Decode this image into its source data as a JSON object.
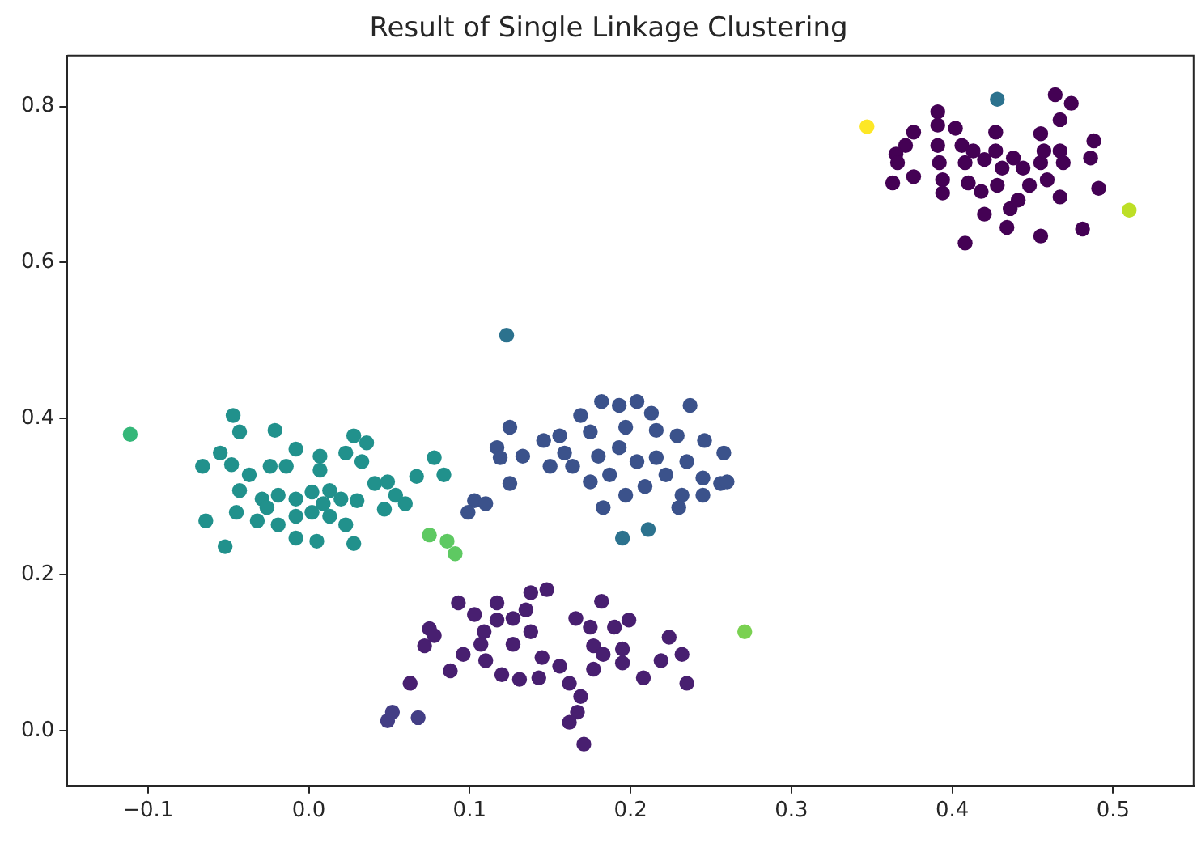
{
  "chart_data": {
    "type": "scatter",
    "title": "Result of Single Linkage Clustering",
    "marker": "circle",
    "grid": false,
    "legend": false,
    "xlim": [
      -0.15,
      0.55
    ],
    "ylim": [
      -0.07,
      0.865
    ],
    "xticks": [
      {
        "value": -0.1,
        "label": "−0.1"
      },
      {
        "value": 0,
        "label": "0.0"
      },
      {
        "value": 0.1,
        "label": "0.1"
      },
      {
        "value": 0.2,
        "label": "0.2"
      },
      {
        "value": 0.3,
        "label": "0.3"
      },
      {
        "value": 0.4,
        "label": "0.4"
      },
      {
        "value": 0.5,
        "label": "0.5"
      }
    ],
    "yticks": [
      {
        "value": 0,
        "label": "0.0"
      },
      {
        "value": 0.2,
        "label": "0.2"
      },
      {
        "value": 0.4,
        "label": "0.4"
      },
      {
        "value": 0.6,
        "label": "0.6"
      },
      {
        "value": 0.8,
        "label": "0.8"
      }
    ],
    "series": [
      {
        "color": "#440154",
        "x": [
          0.464,
          0.474,
          0.467,
          0.391,
          0.391,
          0.376,
          0.371,
          0.365,
          0.366,
          0.363,
          0.376,
          0.391,
          0.392,
          0.394,
          0.394,
          0.402,
          0.406,
          0.408,
          0.41,
          0.418,
          0.42,
          0.413,
          0.427,
          0.427,
          0.431,
          0.428,
          0.436,
          0.441,
          0.438,
          0.444,
          0.448,
          0.455,
          0.455,
          0.459,
          0.457,
          0.467,
          0.469,
          0.467,
          0.488,
          0.486,
          0.491,
          0.434,
          0.455,
          0.481,
          0.408,
          0.42
        ],
        "values": [
          0.815,
          0.804,
          0.783,
          0.793,
          0.776,
          0.767,
          0.75,
          0.739,
          0.728,
          0.702,
          0.71,
          0.75,
          0.728,
          0.706,
          0.689,
          0.772,
          0.75,
          0.728,
          0.702,
          0.691,
          0.662,
          0.743,
          0.767,
          0.743,
          0.721,
          0.699,
          0.669,
          0.68,
          0.734,
          0.721,
          0.699,
          0.765,
          0.728,
          0.706,
          0.743,
          0.743,
          0.728,
          0.684,
          0.756,
          0.734,
          0.695,
          0.645,
          0.634,
          0.643,
          0.625,
          0.732
        ]
      },
      {
        "color": "#481f70",
        "x": [
          0.093,
          0.103,
          0.075,
          0.072,
          0.078,
          0.063,
          0.088,
          0.096,
          0.109,
          0.117,
          0.127,
          0.138,
          0.148,
          0.135,
          0.138,
          0.127,
          0.11,
          0.12,
          0.131,
          0.143,
          0.145,
          0.156,
          0.162,
          0.169,
          0.167,
          0.162,
          0.171,
          0.166,
          0.175,
          0.182,
          0.19,
          0.199,
          0.177,
          0.177,
          0.183,
          0.195,
          0.195,
          0.208,
          0.219,
          0.224,
          0.232,
          0.235,
          0.117,
          0.107
        ],
        "values": [
          0.164,
          0.149,
          0.131,
          0.109,
          0.122,
          0.061,
          0.077,
          0.098,
          0.127,
          0.142,
          0.144,
          0.177,
          0.181,
          0.155,
          0.127,
          0.111,
          0.09,
          0.072,
          0.066,
          0.068,
          0.094,
          0.083,
          0.061,
          0.044,
          0.024,
          0.011,
          -0.017,
          0.144,
          0.133,
          0.166,
          0.133,
          0.142,
          0.109,
          0.079,
          0.098,
          0.105,
          0.087,
          0.068,
          0.09,
          0.12,
          0.098,
          0.061,
          0.164,
          0.111
        ]
      },
      {
        "color": "#433e85",
        "x": [
          0.049,
          0.052,
          0.068
        ],
        "values": [
          0.013,
          0.024,
          0.017
        ]
      },
      {
        "color": "#3b528b",
        "x": [
          0.125,
          0.117,
          0.119,
          0.133,
          0.125,
          0.103,
          0.11,
          0.099,
          0.146,
          0.156,
          0.159,
          0.15,
          0.164,
          0.169,
          0.182,
          0.175,
          0.18,
          0.175,
          0.187,
          0.183,
          0.193,
          0.204,
          0.213,
          0.216,
          0.197,
          0.193,
          0.204,
          0.216,
          0.222,
          0.209,
          0.197,
          0.229,
          0.237,
          0.246,
          0.235,
          0.258,
          0.245,
          0.256,
          0.232,
          0.245,
          0.23,
          0.26
        ],
        "values": [
          0.389,
          0.363,
          0.35,
          0.352,
          0.317,
          0.295,
          0.291,
          0.28,
          0.372,
          0.378,
          0.356,
          0.339,
          0.339,
          0.404,
          0.422,
          0.383,
          0.352,
          0.319,
          0.328,
          0.286,
          0.417,
          0.422,
          0.407,
          0.385,
          0.389,
          0.363,
          0.345,
          0.35,
          0.328,
          0.313,
          0.302,
          0.378,
          0.417,
          0.372,
          0.345,
          0.356,
          0.324,
          0.317,
          0.302,
          0.302,
          0.286,
          0.319
        ]
      },
      {
        "color": "#2c728e",
        "x": [
          0.195,
          0.211,
          0.123,
          0.428
        ],
        "values": [
          0.247,
          0.258,
          0.507,
          0.809
        ]
      },
      {
        "color": "#21918c",
        "x": [
          -0.047,
          -0.043,
          -0.021,
          -0.008,
          -0.066,
          -0.055,
          -0.048,
          -0.037,
          -0.024,
          -0.014,
          0.007,
          0.023,
          0.028,
          0.036,
          0.033,
          0.007,
          -0.043,
          -0.029,
          -0.019,
          -0.008,
          0.002,
          0.013,
          0.02,
          0.03,
          0.041,
          0.049,
          0.054,
          0.067,
          0.078,
          0.084,
          0.047,
          0.06,
          -0.064,
          -0.045,
          -0.032,
          -0.019,
          -0.008,
          0.002,
          0.013,
          0.023,
          -0.008,
          0.005,
          0.028,
          -0.052,
          -0.026,
          0.009
        ],
        "values": [
          0.404,
          0.383,
          0.385,
          0.361,
          0.339,
          0.356,
          0.341,
          0.328,
          0.339,
          0.339,
          0.352,
          0.356,
          0.378,
          0.369,
          0.345,
          0.334,
          0.308,
          0.297,
          0.302,
          0.297,
          0.306,
          0.308,
          0.297,
          0.295,
          0.317,
          0.319,
          0.302,
          0.326,
          0.35,
          0.328,
          0.284,
          0.291,
          0.269,
          0.28,
          0.269,
          0.264,
          0.275,
          0.28,
          0.275,
          0.264,
          0.247,
          0.243,
          0.24,
          0.236,
          0.286,
          0.291
        ]
      },
      {
        "color": "#35b779",
        "x": [
          -0.111
        ],
        "values": [
          0.38
        ]
      },
      {
        "color": "#5ec962",
        "x": [
          0.075,
          0.086,
          0.091
        ],
        "values": [
          0.251,
          0.243,
          0.227
        ]
      },
      {
        "color": "#7ad151",
        "x": [
          0.271
        ],
        "values": [
          0.127
        ]
      },
      {
        "color": "#bddf26",
        "x": [
          0.51
        ],
        "values": [
          0.667
        ]
      },
      {
        "color": "#fde725",
        "x": [
          0.347
        ],
        "values": [
          0.774
        ]
      }
    ]
  }
}
